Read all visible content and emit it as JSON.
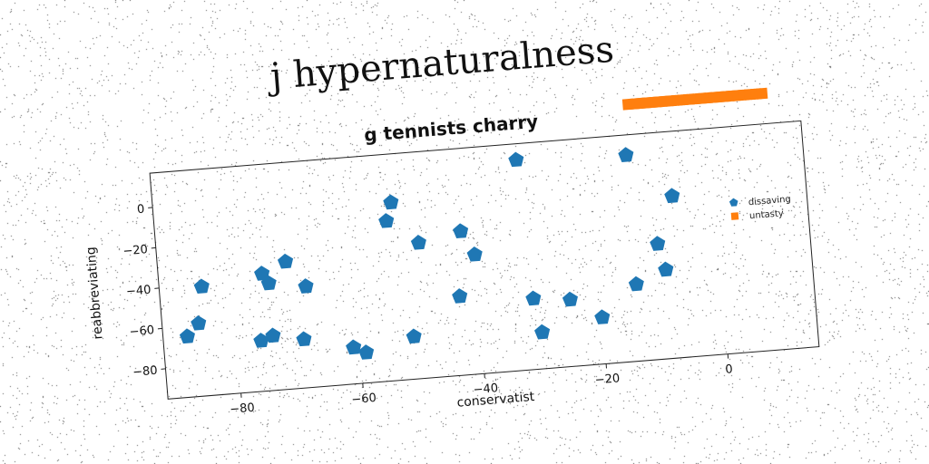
{
  "page": {
    "main_title": "j hypernaturalness"
  },
  "chart_data": {
    "type": "scatter",
    "title": "g tennists charry",
    "xlabel": "conservatist",
    "ylabel": "reabbreviating",
    "xlim": [
      -92,
      15
    ],
    "ylim": [
      -95,
      17
    ],
    "xticks": [
      -80,
      -60,
      -40,
      -20,
      0
    ],
    "yticks": [
      0,
      -20,
      -40,
      -60,
      -80
    ],
    "grid": false,
    "legend_position": "right",
    "series": [
      {
        "name": "dissaving",
        "marker": "pentagon",
        "color": "#1f77b4",
        "points": [
          [
            -88,
            -65
          ],
          [
            -86,
            -59
          ],
          [
            -85,
            -41
          ],
          [
            -76,
            -70
          ],
          [
            -75,
            -37
          ],
          [
            -74,
            -42
          ],
          [
            -74,
            -68
          ],
          [
            -71,
            -32
          ],
          [
            -69,
            -71
          ],
          [
            -68,
            -45
          ],
          [
            -61,
            -77
          ],
          [
            -59,
            -80
          ],
          [
            -54,
            -16
          ],
          [
            -53,
            -7
          ],
          [
            -51,
            -74
          ],
          [
            -49,
            -28
          ],
          [
            -43,
            -56
          ],
          [
            -42,
            -24
          ],
          [
            -40,
            -36
          ],
          [
            -32,
            9
          ],
          [
            -31,
            -60
          ],
          [
            -30,
            -77
          ],
          [
            -25,
            -62
          ],
          [
            -20,
            -72
          ],
          [
            -14,
            7
          ],
          [
            -14,
            -57
          ],
          [
            -10,
            -38
          ],
          [
            -9,
            -51
          ],
          [
            -7,
            -15
          ]
        ]
      },
      {
        "name": "untasty",
        "marker": "square",
        "color": "#ff7f0e",
        "points": [
          [
            -13,
            32
          ],
          [
            -12,
            32
          ],
          [
            -11,
            32
          ],
          [
            -10,
            32
          ],
          [
            -9,
            32
          ],
          [
            -8,
            32
          ],
          [
            -7,
            32
          ],
          [
            -6,
            32
          ],
          [
            -5,
            32
          ],
          [
            -4,
            32
          ],
          [
            -3,
            32
          ],
          [
            -2,
            32
          ],
          [
            -1,
            32
          ],
          [
            0,
            32
          ],
          [
            1,
            32
          ],
          [
            2,
            32
          ],
          [
            3,
            32
          ],
          [
            4,
            32
          ],
          [
            5,
            32
          ],
          [
            6,
            32
          ],
          [
            7,
            32
          ],
          [
            8,
            32
          ],
          [
            9,
            32
          ]
        ]
      }
    ]
  }
}
